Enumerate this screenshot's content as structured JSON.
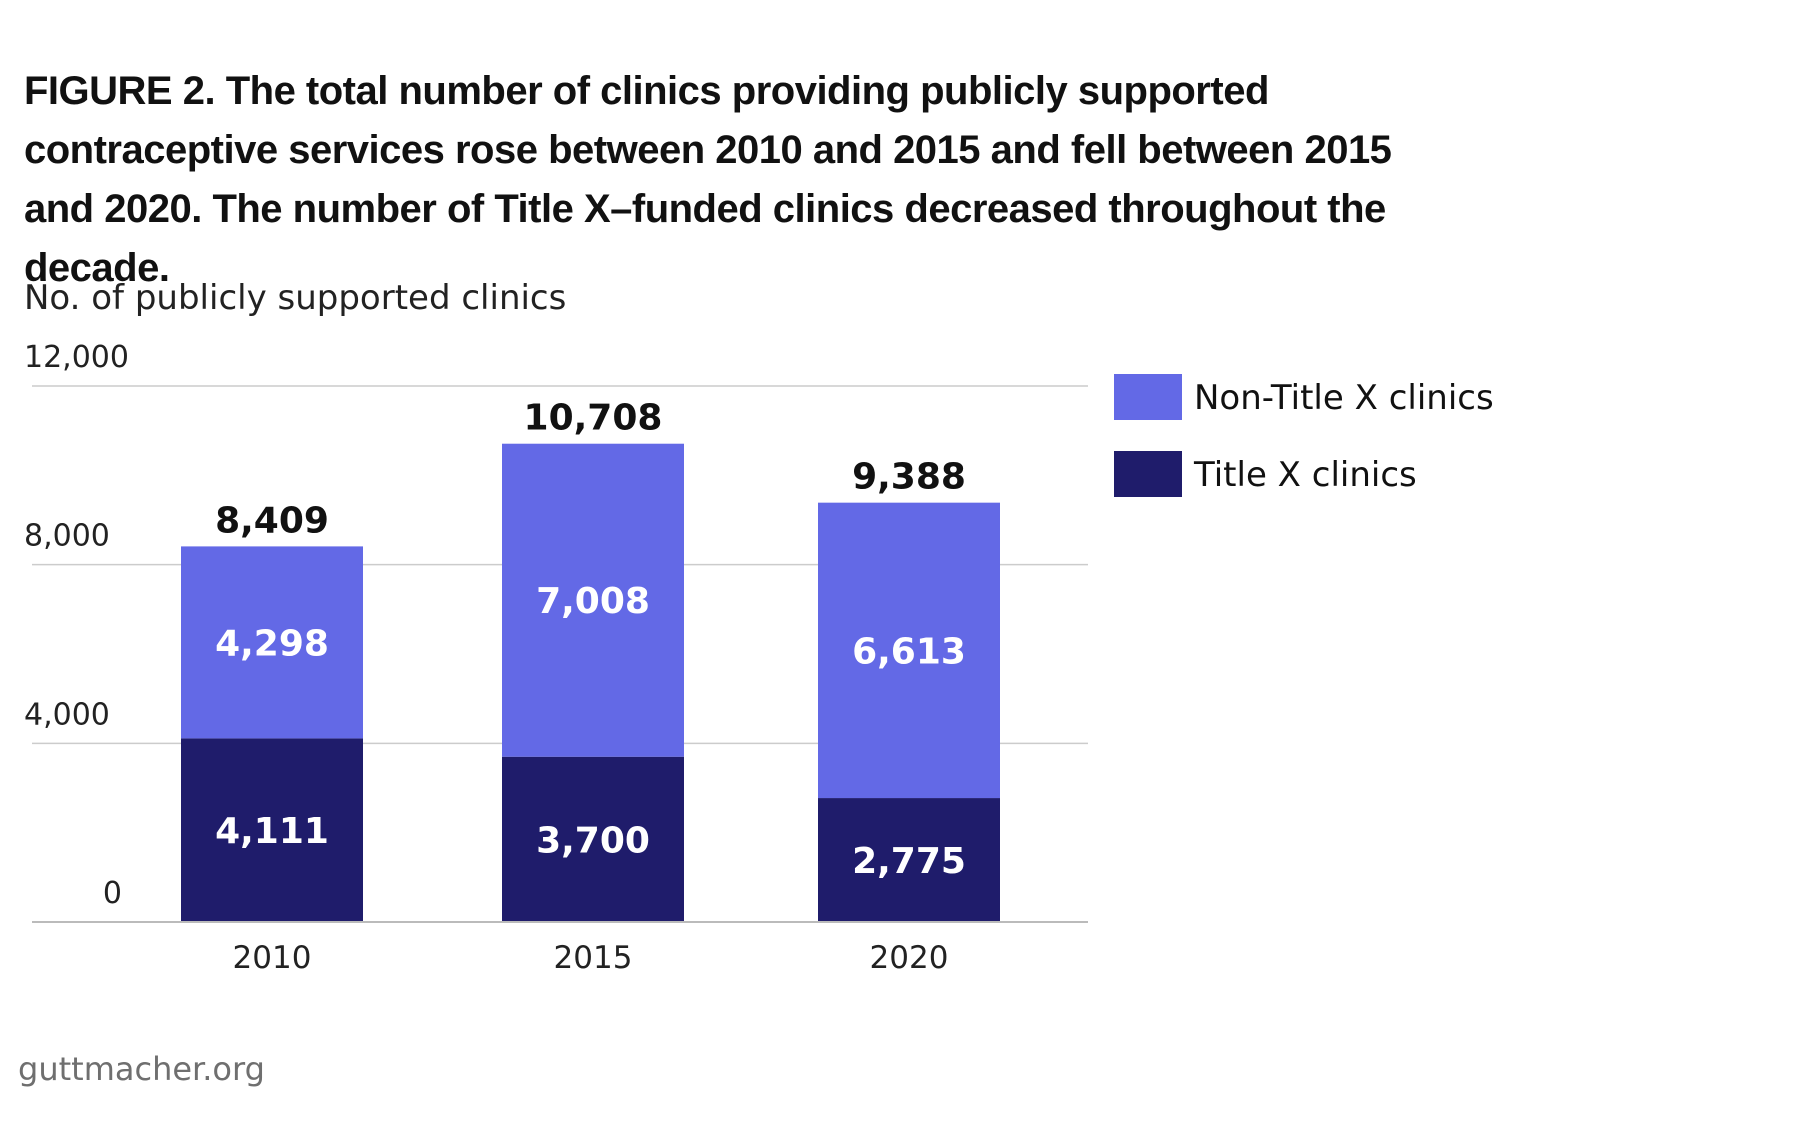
{
  "title": "FIGURE 2. The total number of clinics providing publicly supported contraceptive services rose between 2010 and 2015 and fell between 2015 and 2020. The number of Title X–funded clinics decreased throughout the decade.",
  "source": "guttmacher.org",
  "colors": {
    "title_x": "#1f1c6b",
    "non_title_x": "#6369e6",
    "grid": "#cccccc",
    "text": "#111111"
  },
  "chart_data": {
    "type": "bar",
    "stacked": true,
    "ylabel": "No. of publicly supported clinics",
    "ylim": [
      0,
      12000
    ],
    "yticks": [
      0,
      4000,
      8000,
      12000
    ],
    "ytick_labels": [
      "0",
      "4,000",
      "8,000",
      "12,000"
    ],
    "categories": [
      "2010",
      "2015",
      "2020"
    ],
    "series": [
      {
        "name": "Title X clinics",
        "values": [
          4111,
          3700,
          2775
        ],
        "labels": [
          "4,111",
          "3,700",
          "2,775"
        ]
      },
      {
        "name": "Non-Title X clinics",
        "values": [
          4298,
          7008,
          6613
        ],
        "labels": [
          "4,298",
          "7,008",
          "6,613"
        ]
      }
    ],
    "totals": [
      8409,
      10708,
      9388
    ],
    "total_labels": [
      "8,409",
      "10,708",
      "9,388"
    ],
    "legend_position": "right",
    "grid": true
  }
}
